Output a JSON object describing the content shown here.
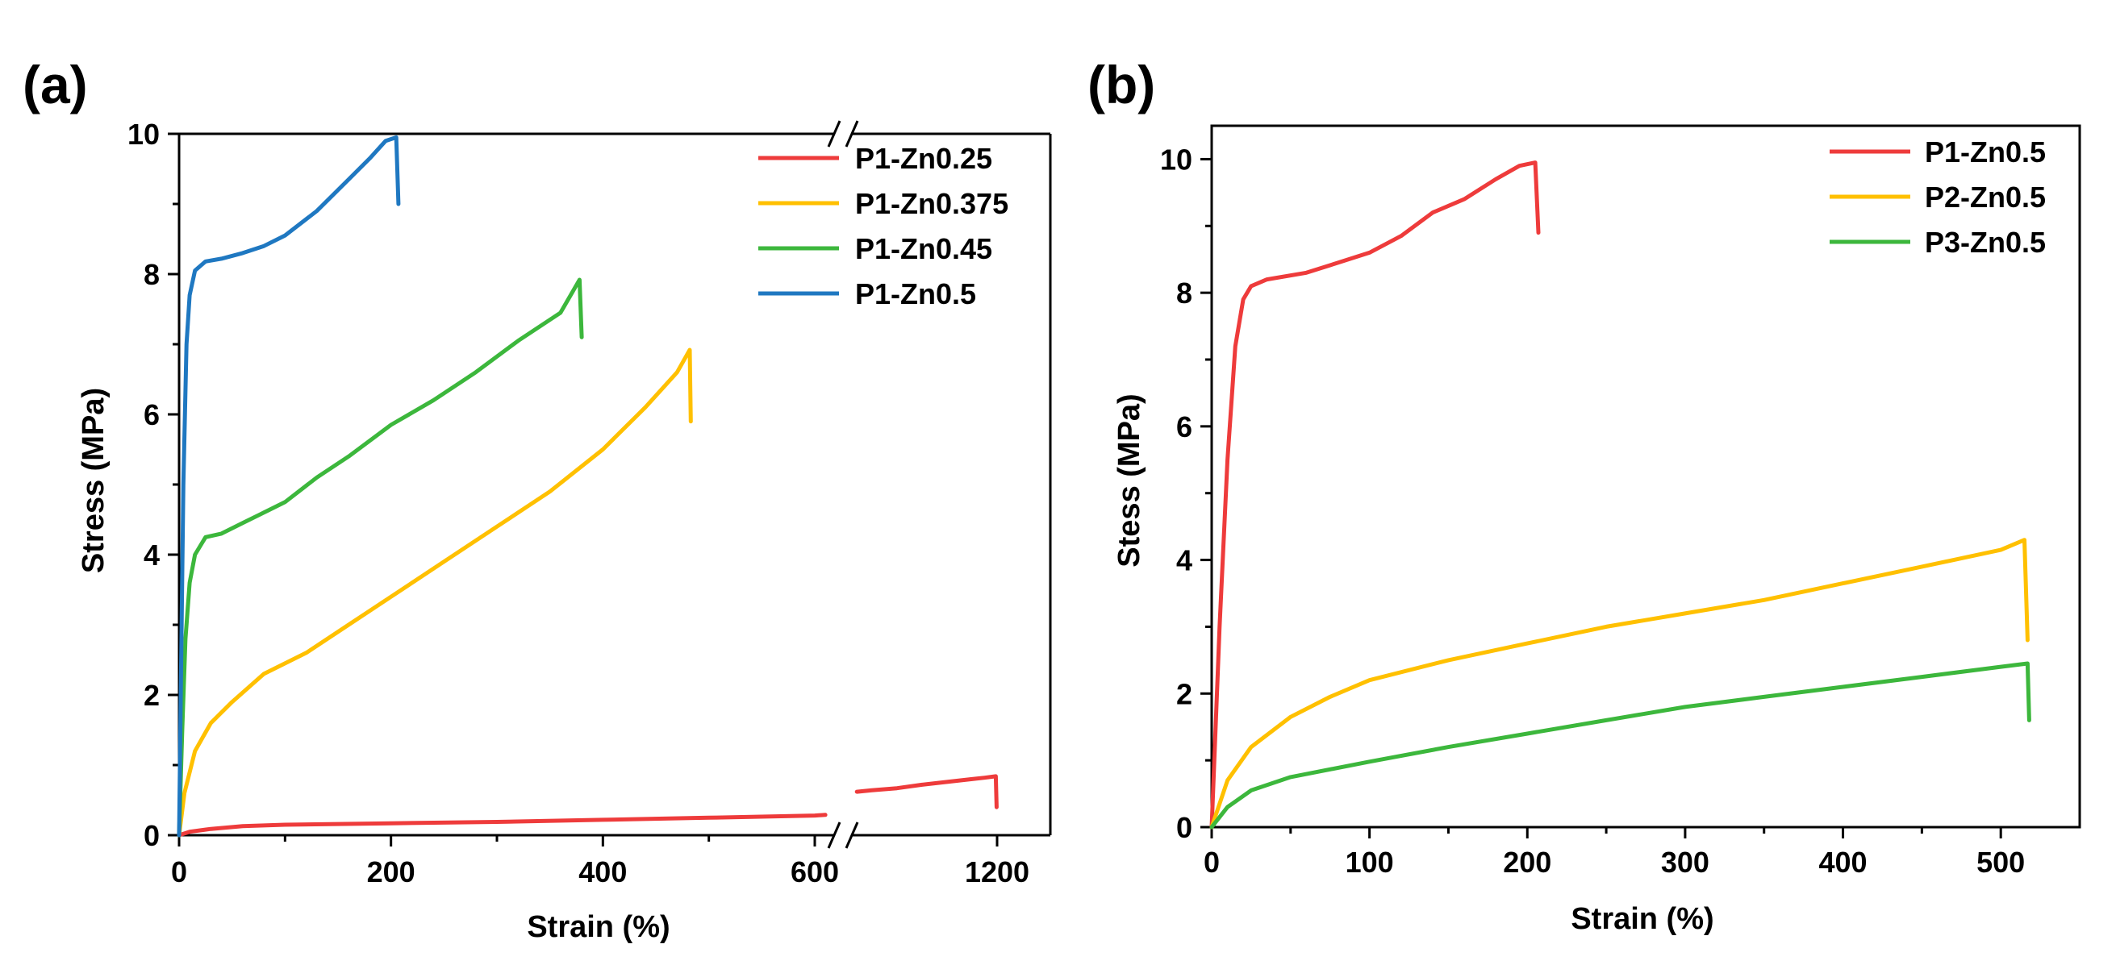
{
  "chart_data": [
    {
      "type": "line",
      "panel_label": "(a)",
      "xlabel": "Strain (%)",
      "ylabel": "Stress (MPa)",
      "xlim": [
        0,
        1250
      ],
      "ylim": [
        0,
        10
      ],
      "x_axis_break": {
        "before": 600,
        "after": 1200,
        "compressed_display": [
          620,
          1200
        ]
      },
      "x_ticks": [
        0,
        200,
        400,
        600,
        1200
      ],
      "x_tick_labels": [
        "0",
        "200",
        "400",
        "600",
        "1200"
      ],
      "y_ticks": [
        0,
        2,
        4,
        6,
        8,
        10
      ],
      "y_tick_labels": [
        "0",
        "2",
        "4",
        "6",
        "8",
        "10"
      ],
      "legend_position": "top-right",
      "series": [
        {
          "name": "P1-Zn0.25",
          "color": "#EE3B3B",
          "points": [
            [
              0,
              0
            ],
            [
              10,
              0.05
            ],
            [
              30,
              0.09
            ],
            [
              60,
              0.13
            ],
            [
              100,
              0.15
            ],
            [
              200,
              0.17
            ],
            [
              300,
              0.19
            ],
            [
              400,
              0.22
            ],
            [
              500,
              0.25
            ],
            [
              600,
              0.28
            ],
            [
              610,
              0.29
            ]
          ],
          "points_after_break": [
            [
              640,
              0.62
            ],
            [
              700,
              0.64
            ],
            [
              800,
              0.67
            ],
            [
              900,
              0.72
            ],
            [
              1000,
              0.76
            ],
            [
              1100,
              0.8
            ],
            [
              1150,
              0.82
            ],
            [
              1195,
              0.84
            ],
            [
              1198,
              0.4
            ]
          ]
        },
        {
          "name": "P1-Zn0.375",
          "color": "#FFC000",
          "points": [
            [
              0,
              0
            ],
            [
              5,
              0.6
            ],
            [
              15,
              1.2
            ],
            [
              30,
              1.6
            ],
            [
              50,
              1.9
            ],
            [
              80,
              2.3
            ],
            [
              120,
              2.6
            ],
            [
              160,
              3.0
            ],
            [
              200,
              3.4
            ],
            [
              250,
              3.9
            ],
            [
              300,
              4.4
            ],
            [
              350,
              4.9
            ],
            [
              400,
              5.5
            ],
            [
              440,
              6.1
            ],
            [
              470,
              6.6
            ],
            [
              482,
              6.92
            ],
            [
              483,
              5.9
            ]
          ]
        },
        {
          "name": "P1-Zn0.45",
          "color": "#3CB73C",
          "points": [
            [
              0,
              0
            ],
            [
              3,
              1.5
            ],
            [
              6,
              2.8
            ],
            [
              10,
              3.6
            ],
            [
              15,
              4.0
            ],
            [
              25,
              4.25
            ],
            [
              40,
              4.3
            ],
            [
              60,
              4.45
            ],
            [
              80,
              4.6
            ],
            [
              100,
              4.75
            ],
            [
              130,
              5.1
            ],
            [
              160,
              5.4
            ],
            [
              200,
              5.85
            ],
            [
              240,
              6.2
            ],
            [
              280,
              6.6
            ],
            [
              320,
              7.05
            ],
            [
              360,
              7.45
            ],
            [
              378,
              7.92
            ],
            [
              380,
              7.1
            ]
          ]
        },
        {
          "name": "P1-Zn0.5",
          "color": "#1F78C1",
          "points": [
            [
              0,
              0
            ],
            [
              2,
              2.5
            ],
            [
              4,
              5.0
            ],
            [
              7,
              7.0
            ],
            [
              10,
              7.7
            ],
            [
              15,
              8.05
            ],
            [
              25,
              8.18
            ],
            [
              40,
              8.22
            ],
            [
              60,
              8.3
            ],
            [
              80,
              8.4
            ],
            [
              100,
              8.55
            ],
            [
              130,
              8.9
            ],
            [
              160,
              9.35
            ],
            [
              180,
              9.65
            ],
            [
              195,
              9.9
            ],
            [
              205,
              9.95
            ],
            [
              207,
              9.0
            ]
          ]
        }
      ]
    },
    {
      "type": "line",
      "panel_label": "(b)",
      "xlabel": "Strain (%)",
      "ylabel": "Stess (MPa)",
      "xlim": [
        0,
        550
      ],
      "ylim": [
        0,
        10.5
      ],
      "x_ticks": [
        0,
        100,
        200,
        300,
        400,
        500
      ],
      "x_tick_labels": [
        "0",
        "100",
        "200",
        "300",
        "400",
        "500"
      ],
      "y_ticks": [
        0,
        2,
        4,
        6,
        8,
        10
      ],
      "y_tick_labels": [
        "0",
        "2",
        "4",
        "6",
        "8",
        "10"
      ],
      "legend_position": "top-right",
      "series": [
        {
          "name": "P1-Zn0.5",
          "color": "#EE3B3B",
          "points": [
            [
              0,
              0
            ],
            [
              5,
              3.0
            ],
            [
              10,
              5.5
            ],
            [
              15,
              7.2
            ],
            [
              20,
              7.9
            ],
            [
              25,
              8.1
            ],
            [
              35,
              8.2
            ],
            [
              60,
              8.3
            ],
            [
              80,
              8.45
            ],
            [
              100,
              8.6
            ],
            [
              120,
              8.85
            ],
            [
              140,
              9.2
            ],
            [
              160,
              9.4
            ],
            [
              180,
              9.7
            ],
            [
              195,
              9.9
            ],
            [
              205,
              9.95
            ],
            [
              207,
              8.9
            ]
          ]
        },
        {
          "name": "P2-Zn0.5",
          "color": "#FFC000",
          "points": [
            [
              0,
              0
            ],
            [
              10,
              0.7
            ],
            [
              25,
              1.2
            ],
            [
              50,
              1.65
            ],
            [
              75,
              1.95
            ],
            [
              100,
              2.2
            ],
            [
              150,
              2.5
            ],
            [
              200,
              2.75
            ],
            [
              250,
              3.0
            ],
            [
              300,
              3.2
            ],
            [
              350,
              3.4
            ],
            [
              400,
              3.65
            ],
            [
              450,
              3.9
            ],
            [
              500,
              4.15
            ],
            [
              515,
              4.3
            ],
            [
              517,
              2.8
            ]
          ]
        },
        {
          "name": "P3-Zn0.5",
          "color": "#3CB73C",
          "points": [
            [
              0,
              0
            ],
            [
              10,
              0.3
            ],
            [
              25,
              0.55
            ],
            [
              50,
              0.75
            ],
            [
              100,
              0.98
            ],
            [
              150,
              1.2
            ],
            [
              200,
              1.4
            ],
            [
              250,
              1.6
            ],
            [
              300,
              1.8
            ],
            [
              350,
              1.95
            ],
            [
              400,
              2.1
            ],
            [
              450,
              2.25
            ],
            [
              500,
              2.4
            ],
            [
              517,
              2.45
            ],
            [
              518,
              1.6
            ]
          ]
        }
      ]
    }
  ]
}
